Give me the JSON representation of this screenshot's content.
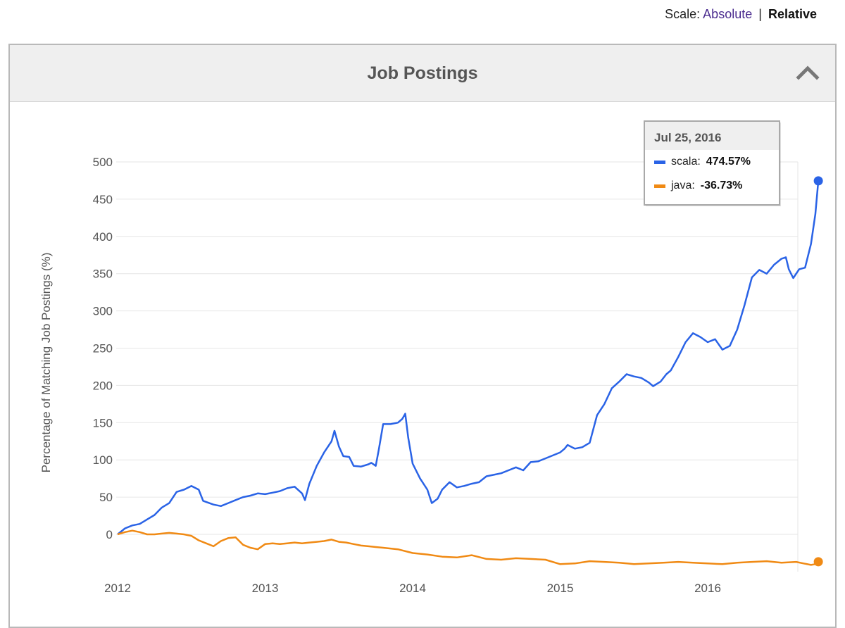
{
  "scale": {
    "label": "Scale:",
    "absolute": "Absolute",
    "separator": "|",
    "relative": "Relative",
    "selected": "Relative"
  },
  "panel": {
    "title": "Job Postings",
    "collapse_icon": "chevron-up-icon"
  },
  "colors": {
    "scala": "#2a63e6",
    "java": "#f08a14",
    "grid": "#e6e6e6",
    "axis_text": "#555555"
  },
  "chart_data": {
    "type": "line",
    "title": "",
    "xlabel": "",
    "ylabel": "Percentage of Matching Job Postings (%)",
    "x_tick_labels": [
      "2012",
      "2013",
      "2014",
      "2015",
      "2016"
    ],
    "x_range": [
      2012.0,
      2016.56
    ],
    "ylim": [
      -50,
      500
    ],
    "y_ticks": [
      0,
      50,
      100,
      150,
      200,
      250,
      300,
      350,
      400,
      450,
      500
    ],
    "grid": true,
    "series": [
      {
        "name": "scala",
        "color": "#2a63e6",
        "points": [
          [
            2012.0,
            0
          ],
          [
            2012.05,
            8
          ],
          [
            2012.1,
            12
          ],
          [
            2012.15,
            14
          ],
          [
            2012.2,
            20
          ],
          [
            2012.25,
            26
          ],
          [
            2012.3,
            36
          ],
          [
            2012.35,
            42
          ],
          [
            2012.4,
            57
          ],
          [
            2012.45,
            60
          ],
          [
            2012.5,
            65
          ],
          [
            2012.55,
            60
          ],
          [
            2012.58,
            45
          ],
          [
            2012.65,
            40
          ],
          [
            2012.7,
            38
          ],
          [
            2012.75,
            42
          ],
          [
            2012.8,
            46
          ],
          [
            2012.85,
            50
          ],
          [
            2012.9,
            52
          ],
          [
            2012.95,
            55
          ],
          [
            2013.0,
            54
          ],
          [
            2013.05,
            56
          ],
          [
            2013.1,
            58
          ],
          [
            2013.15,
            62
          ],
          [
            2013.2,
            64
          ],
          [
            2013.25,
            55
          ],
          [
            2013.27,
            46
          ],
          [
            2013.3,
            68
          ],
          [
            2013.35,
            92
          ],
          [
            2013.4,
            110
          ],
          [
            2013.45,
            125
          ],
          [
            2013.47,
            139
          ],
          [
            2013.5,
            118
          ],
          [
            2013.53,
            105
          ],
          [
            2013.57,
            104
          ],
          [
            2013.6,
            92
          ],
          [
            2013.65,
            91
          ],
          [
            2013.7,
            94
          ],
          [
            2013.72,
            96
          ],
          [
            2013.75,
            92
          ],
          [
            2013.77,
            113
          ],
          [
            2013.8,
            148
          ],
          [
            2013.85,
            148
          ],
          [
            2013.9,
            150
          ],
          [
            2013.93,
            155
          ],
          [
            2013.95,
            162
          ],
          [
            2013.97,
            130
          ],
          [
            2014.0,
            95
          ],
          [
            2014.05,
            75
          ],
          [
            2014.1,
            60
          ],
          [
            2014.13,
            42
          ],
          [
            2014.17,
            48
          ],
          [
            2014.2,
            60
          ],
          [
            2014.25,
            70
          ],
          [
            2014.3,
            63
          ],
          [
            2014.35,
            65
          ],
          [
            2014.4,
            68
          ],
          [
            2014.45,
            70
          ],
          [
            2014.5,
            78
          ],
          [
            2014.55,
            80
          ],
          [
            2014.6,
            82
          ],
          [
            2014.65,
            86
          ],
          [
            2014.7,
            90
          ],
          [
            2014.75,
            86
          ],
          [
            2014.8,
            97
          ],
          [
            2014.85,
            98
          ],
          [
            2014.9,
            102
          ],
          [
            2014.95,
            106
          ],
          [
            2015.0,
            110
          ],
          [
            2015.03,
            115
          ],
          [
            2015.05,
            120
          ],
          [
            2015.1,
            115
          ],
          [
            2015.15,
            117
          ],
          [
            2015.2,
            123
          ],
          [
            2015.25,
            160
          ],
          [
            2015.3,
            175
          ],
          [
            2015.35,
            196
          ],
          [
            2015.4,
            205
          ],
          [
            2015.45,
            215
          ],
          [
            2015.5,
            212
          ],
          [
            2015.55,
            210
          ],
          [
            2015.6,
            204
          ],
          [
            2015.63,
            199
          ],
          [
            2015.68,
            205
          ],
          [
            2015.72,
            215
          ],
          [
            2015.75,
            220
          ],
          [
            2015.8,
            238
          ],
          [
            2015.85,
            258
          ],
          [
            2015.9,
            270
          ],
          [
            2015.95,
            265
          ],
          [
            2016.0,
            258
          ],
          [
            2016.05,
            262
          ],
          [
            2016.1,
            248
          ],
          [
            2016.15,
            253
          ],
          [
            2016.2,
            275
          ],
          [
            2016.25,
            308
          ],
          [
            2016.3,
            345
          ],
          [
            2016.35,
            355
          ],
          [
            2016.4,
            350
          ],
          [
            2016.45,
            362
          ],
          [
            2016.5,
            370
          ],
          [
            2016.53,
            372
          ],
          [
            2016.55,
            356
          ],
          [
            2016.58,
            344
          ],
          [
            2016.62,
            356
          ],
          [
            2016.66,
            358
          ],
          [
            2016.7,
            390
          ],
          [
            2016.73,
            430
          ],
          [
            2016.75,
            474.57
          ]
        ]
      },
      {
        "name": "java",
        "color": "#f08a14",
        "points": [
          [
            2012.0,
            0
          ],
          [
            2012.05,
            3
          ],
          [
            2012.1,
            5
          ],
          [
            2012.15,
            3
          ],
          [
            2012.2,
            0
          ],
          [
            2012.25,
            0
          ],
          [
            2012.3,
            1
          ],
          [
            2012.35,
            2
          ],
          [
            2012.4,
            1
          ],
          [
            2012.45,
            0
          ],
          [
            2012.5,
            -2
          ],
          [
            2012.55,
            -8
          ],
          [
            2012.6,
            -12
          ],
          [
            2012.65,
            -16
          ],
          [
            2012.7,
            -9
          ],
          [
            2012.75,
            -5
          ],
          [
            2012.8,
            -4
          ],
          [
            2012.85,
            -14
          ],
          [
            2012.9,
            -18
          ],
          [
            2012.95,
            -20
          ],
          [
            2013.0,
            -13
          ],
          [
            2013.05,
            -12
          ],
          [
            2013.1,
            -13
          ],
          [
            2013.15,
            -12
          ],
          [
            2013.2,
            -11
          ],
          [
            2013.25,
            -12
          ],
          [
            2013.3,
            -11
          ],
          [
            2013.35,
            -10
          ],
          [
            2013.4,
            -9
          ],
          [
            2013.45,
            -7
          ],
          [
            2013.5,
            -10
          ],
          [
            2013.55,
            -11
          ],
          [
            2013.6,
            -13
          ],
          [
            2013.65,
            -15
          ],
          [
            2013.7,
            -16
          ],
          [
            2013.75,
            -17
          ],
          [
            2013.8,
            -18
          ],
          [
            2013.85,
            -19
          ],
          [
            2013.9,
            -20
          ],
          [
            2014.0,
            -25
          ],
          [
            2014.1,
            -27
          ],
          [
            2014.2,
            -30
          ],
          [
            2014.3,
            -31
          ],
          [
            2014.4,
            -28
          ],
          [
            2014.5,
            -33
          ],
          [
            2014.6,
            -34
          ],
          [
            2014.7,
            -32
          ],
          [
            2014.8,
            -33
          ],
          [
            2014.9,
            -34
          ],
          [
            2015.0,
            -40
          ],
          [
            2015.1,
            -39
          ],
          [
            2015.2,
            -36
          ],
          [
            2015.3,
            -37
          ],
          [
            2015.4,
            -38
          ],
          [
            2015.5,
            -40
          ],
          [
            2015.6,
            -39
          ],
          [
            2015.7,
            -38
          ],
          [
            2015.8,
            -37
          ],
          [
            2015.9,
            -38
          ],
          [
            2016.0,
            -39
          ],
          [
            2016.1,
            -40
          ],
          [
            2016.2,
            -38
          ],
          [
            2016.3,
            -37
          ],
          [
            2016.4,
            -36
          ],
          [
            2016.5,
            -38
          ],
          [
            2016.6,
            -37
          ],
          [
            2016.65,
            -39
          ],
          [
            2016.7,
            -41
          ],
          [
            2016.73,
            -40
          ],
          [
            2016.75,
            -36.73
          ]
        ]
      }
    ],
    "tooltip": {
      "date": "Jul 25, 2016",
      "entries": [
        {
          "series": "scala",
          "label": "scala",
          "value": "474.57%"
        },
        {
          "series": "java",
          "label": "java",
          "value": "-36.73%"
        }
      ]
    }
  }
}
